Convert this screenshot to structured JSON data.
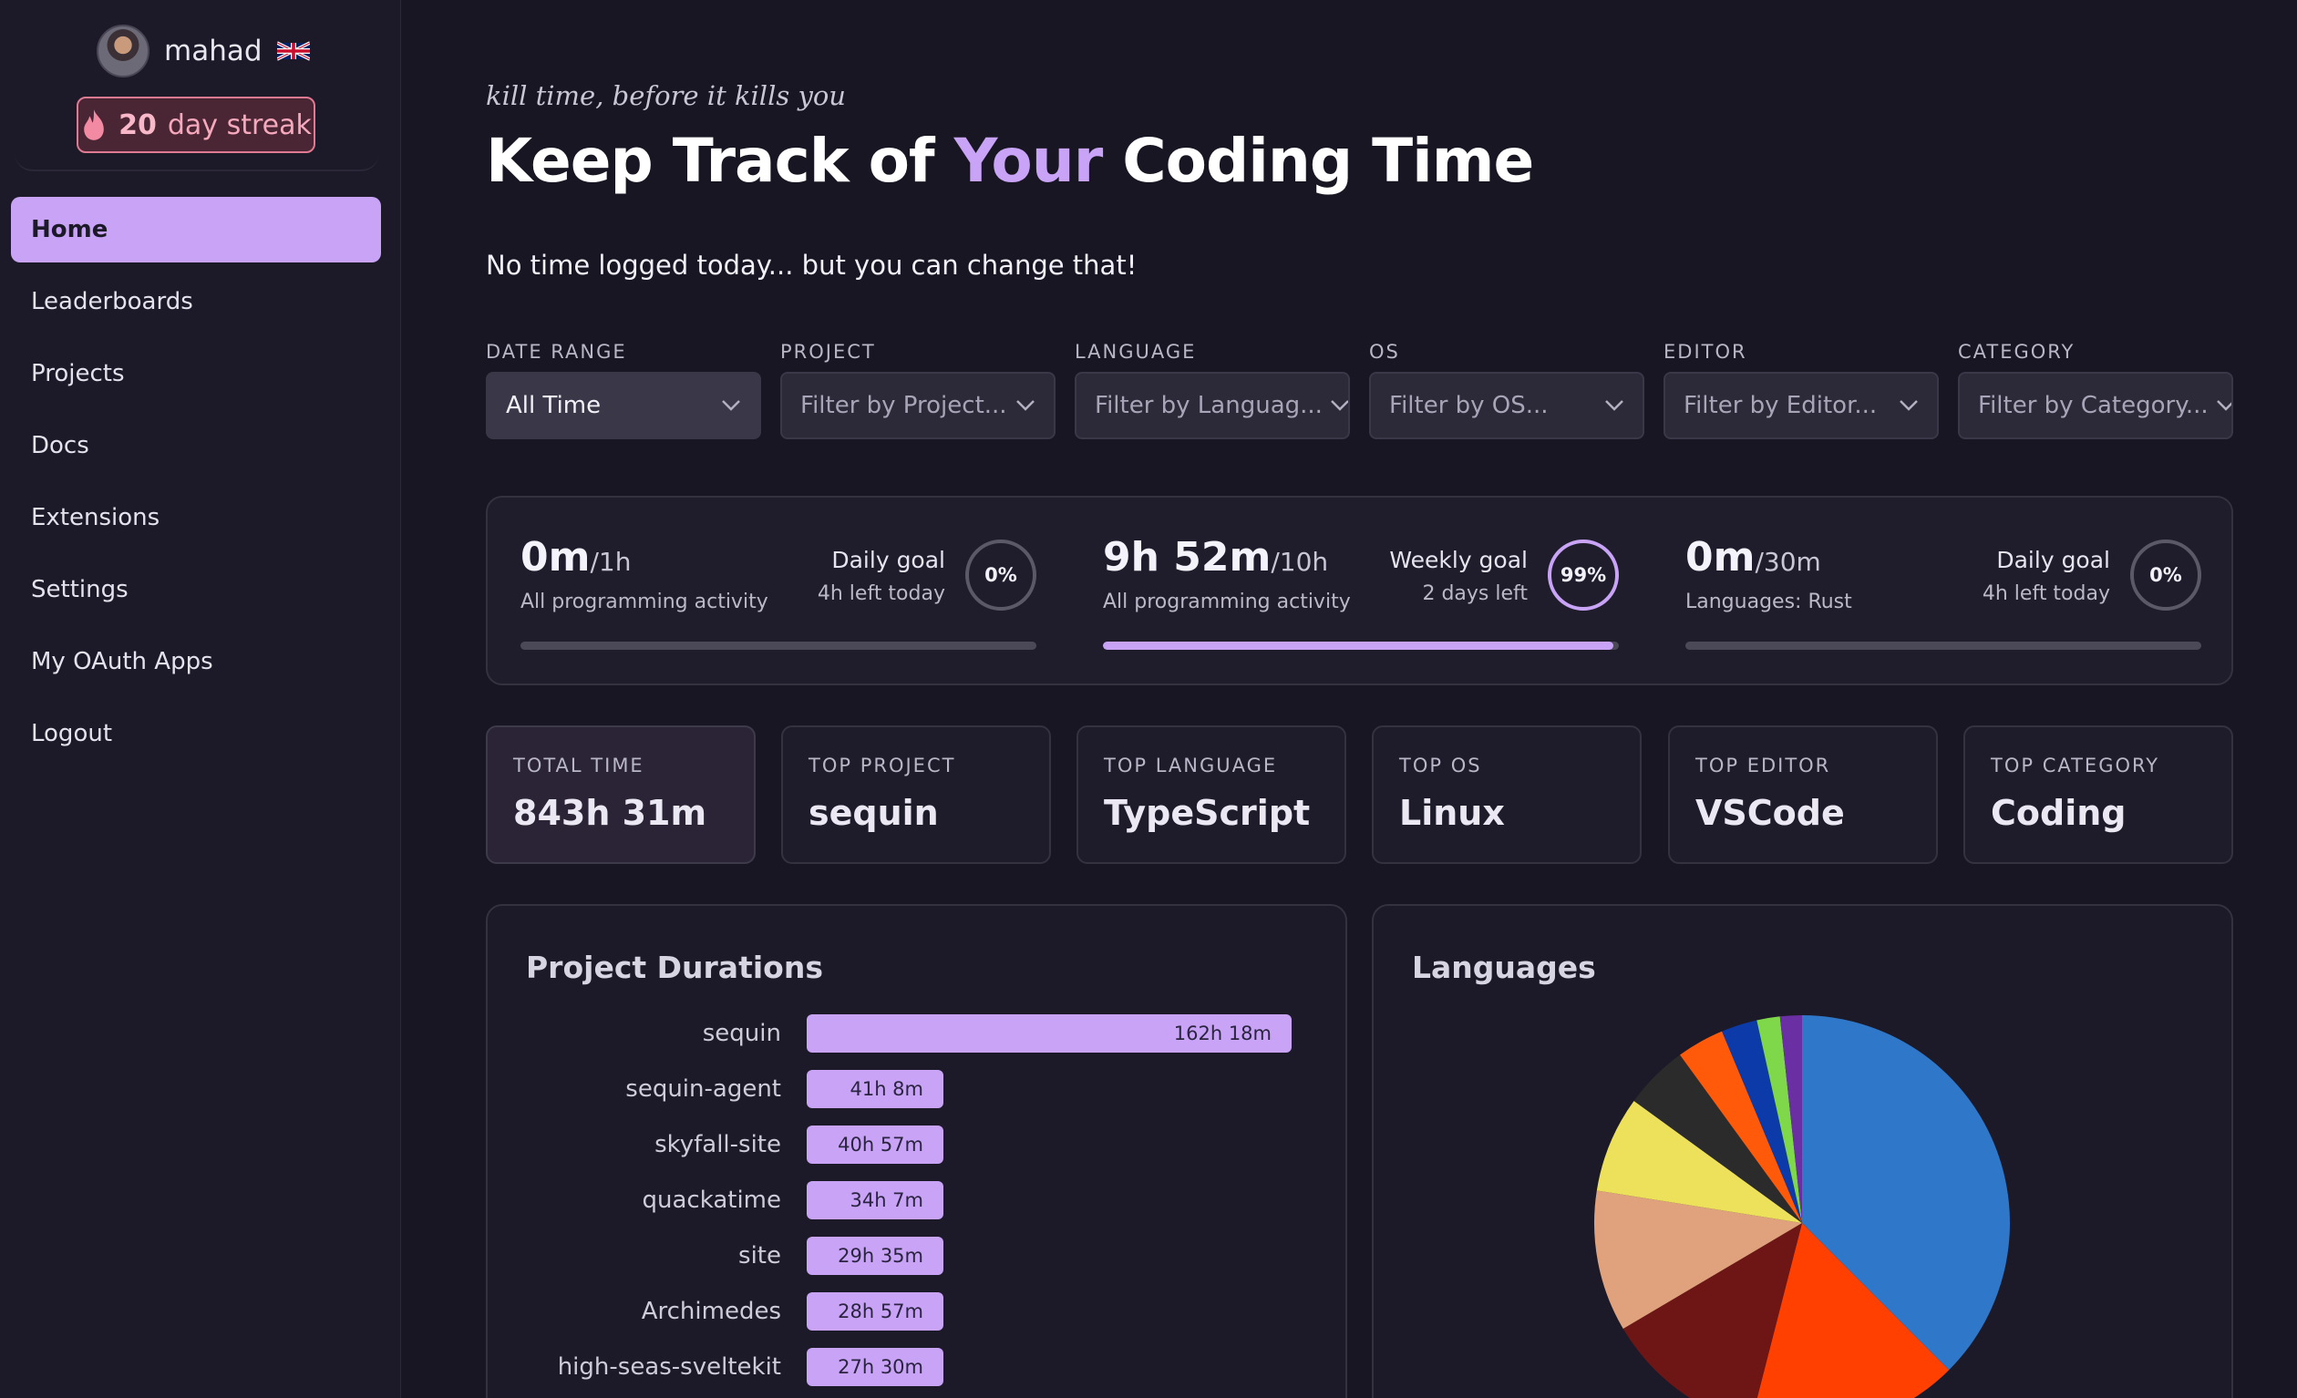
{
  "user": {
    "name": "mahad",
    "flag": "uk-flag-icon"
  },
  "streak": {
    "count": "20",
    "label": "day streak"
  },
  "nav": [
    {
      "label": "Home",
      "active": true
    },
    {
      "label": "Leaderboards"
    },
    {
      "label": "Projects"
    },
    {
      "label": "Docs"
    },
    {
      "label": "Extensions"
    },
    {
      "label": "Settings"
    },
    {
      "label": "My OAuth Apps"
    },
    {
      "label": "Logout"
    }
  ],
  "hero": {
    "tagline": "kill time, before it kills you",
    "title_pre": "Keep Track of ",
    "title_accent": "Your",
    "title_post": " Coding Time",
    "subline": "No time logged today... but you can change that!"
  },
  "filters": [
    {
      "label": "DATE RANGE",
      "value": "All Time"
    },
    {
      "label": "PROJECT",
      "placeholder": "Filter by Project..."
    },
    {
      "label": "LANGUAGE",
      "placeholder": "Filter by Languag..."
    },
    {
      "label": "OS",
      "placeholder": "Filter by OS..."
    },
    {
      "label": "EDITOR",
      "placeholder": "Filter by Editor..."
    },
    {
      "label": "CATEGORY",
      "placeholder": "Filter by Category..."
    }
  ],
  "goals": [
    {
      "value": "0m",
      "target": "/1h",
      "desc": "All programming activity",
      "title": "Daily goal",
      "sub": "4h left today",
      "percent": "0%",
      "progress": 0
    },
    {
      "value": "9h 52m",
      "target": "/10h",
      "desc": "All programming activity",
      "title": "Weekly goal",
      "sub": "2 days left",
      "percent": "99%",
      "progress": 0.99
    },
    {
      "value": "0m",
      "target": "/30m",
      "desc": "Languages: Rust",
      "title": "Daily goal",
      "sub": "4h left today",
      "percent": "0%",
      "progress": 0
    }
  ],
  "stats": [
    {
      "label": "TOTAL TIME",
      "value": "843h 31m"
    },
    {
      "label": "TOP PROJECT",
      "value": "sequin"
    },
    {
      "label": "TOP LANGUAGE",
      "value": "TypeScript"
    },
    {
      "label": "TOP OS",
      "value": "Linux"
    },
    {
      "label": "TOP EDITOR",
      "value": "VSCode"
    },
    {
      "label": "TOP CATEGORY",
      "value": "Coding"
    }
  ],
  "projects_panel": {
    "title": "Project Durations"
  },
  "languages_panel": {
    "title": "Languages"
  },
  "colors": {
    "accent": "#c8a3f6",
    "streak_border": "#e07a92",
    "background": "#181622"
  },
  "chart_data": [
    {
      "type": "bar",
      "orientation": "horizontal",
      "title": "Project Durations",
      "categories": [
        "sequin",
        "sequin-agent",
        "skyfall-site",
        "quackatime",
        "site",
        "Archimedes",
        "high-seas-sveltekit"
      ],
      "values": [
        162.3,
        41.13,
        40.95,
        34.12,
        29.58,
        28.95,
        27.5
      ],
      "labels": [
        "162h 18m",
        "41h 8m",
        "40h 57m",
        "34h 7m",
        "29h 35m",
        "28h 57m",
        "27h 30m"
      ],
      "units": "hours"
    },
    {
      "type": "pie",
      "title": "Languages",
      "values": [
        37.5,
        16.5,
        12.5,
        11.0,
        7.5,
        5.0,
        3.7,
        2.8,
        1.8,
        1.7
      ],
      "colors": [
        "#2f77c8",
        "#ff4000",
        "#6e1616",
        "#dfa27c",
        "#ede05b",
        "#2b2b2b",
        "#ff5a0a",
        "#0c3aa8",
        "#7ed84a",
        "#6a2fa3"
      ],
      "start": "top, clockwise"
    }
  ]
}
